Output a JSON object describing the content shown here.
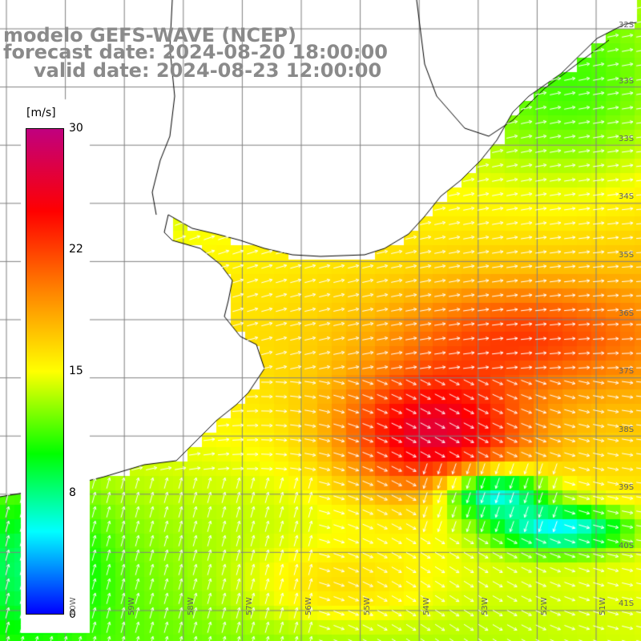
{
  "title": {
    "line1": "modelo GEFS-WAVE (NCEP)",
    "line2": "forecast date: 2024-08-20 18:00:00",
    "line3": "valid date: 2024-08-23 12:00:00"
  },
  "colorbar": {
    "unit": "[m/s]",
    "min": 0,
    "max": 30,
    "tick_values": [
      30,
      22,
      15,
      8,
      0
    ],
    "tick_labels": [
      "30",
      "22",
      "15",
      "8",
      "0"
    ],
    "stops": [
      "#0000ff",
      "#00ffff",
      "#00ff00",
      "#ffff00",
      "#ff8000",
      "#ff0000",
      "#c0007f"
    ]
  },
  "map": {
    "lat_labels": [
      "32S",
      "33S",
      "34S",
      "35S",
      "36S",
      "37S",
      "38S",
      "39S",
      "40S",
      "41S"
    ],
    "lon_labels": [
      "60W",
      "59W",
      "58W",
      "57W",
      "56W",
      "55W",
      "54W",
      "53W",
      "52W",
      "51W"
    ],
    "lon_range": [
      "61W",
      "50W"
    ],
    "lat_range": [
      "31S",
      "41S"
    ],
    "land_color": "#ffffff",
    "grid_color": "#808080",
    "coast_color": "#000000",
    "arrow_color": "#ffffff"
  }
}
